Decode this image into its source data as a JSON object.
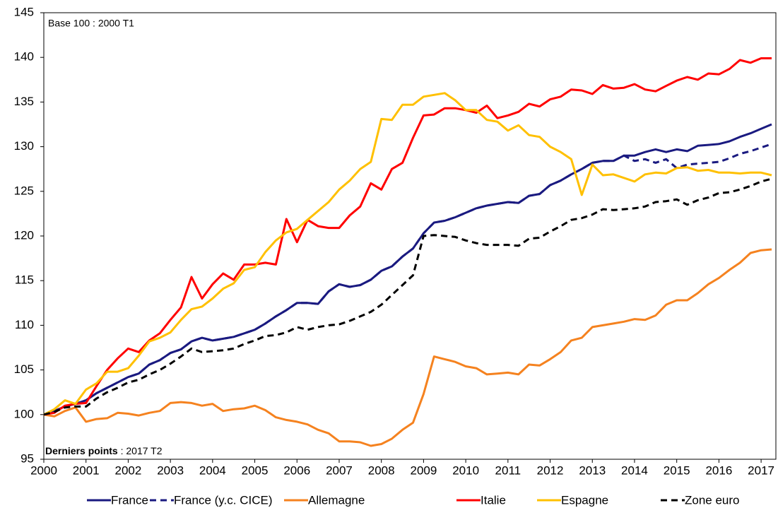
{
  "chart_data": {
    "type": "line",
    "annotation_top": "Base 100 : 2000 T1",
    "annotation_bottom_bold": "Derniers points",
    "annotation_bottom": " : 2017 T2",
    "xlim": [
      2000,
      2017.35
    ],
    "xticks": [
      2000,
      2001,
      2002,
      2003,
      2004,
      2005,
      2006,
      2007,
      2008,
      2009,
      2010,
      2011,
      2012,
      2013,
      2014,
      2015,
      2016,
      2017
    ],
    "ylim": [
      95,
      145
    ],
    "yticks": [
      95,
      100,
      105,
      110,
      115,
      120,
      125,
      130,
      135,
      140,
      145
    ],
    "x": [
      2000,
      2000.25,
      2000.5,
      2000.75,
      2001,
      2001.25,
      2001.5,
      2001.75,
      2002,
      2002.25,
      2002.5,
      2002.75,
      2003,
      2003.25,
      2003.5,
      2003.75,
      2004,
      2004.25,
      2004.5,
      2004.75,
      2005,
      2005.25,
      2005.5,
      2005.75,
      2006,
      2006.25,
      2006.5,
      2006.75,
      2007,
      2007.25,
      2007.5,
      2007.75,
      2008,
      2008.25,
      2008.5,
      2008.75,
      2009,
      2009.25,
      2009.5,
      2009.75,
      2010,
      2010.25,
      2010.5,
      2010.75,
      2011,
      2011.25,
      2011.5,
      2011.75,
      2012,
      2012.25,
      2012.5,
      2012.75,
      2013,
      2013.25,
      2013.5,
      2013.75,
      2014,
      2014.25,
      2014.5,
      2014.75,
      2015,
      2015.25,
      2015.5,
      2015.75,
      2016,
      2016.25,
      2016.5,
      2016.75,
      2017,
      2017.25
    ],
    "series": [
      {
        "name": "France",
        "color": "#1a1a80",
        "dashed": false,
        "values": [
          100,
          100.4,
          100.9,
          101.2,
          101.6,
          102.4,
          103.0,
          103.6,
          104.2,
          104.6,
          105.6,
          106.1,
          106.9,
          107.3,
          108.2,
          108.6,
          108.3,
          108.5,
          108.7,
          109.1,
          109.5,
          110.2,
          111.0,
          111.7,
          112.5,
          112.5,
          112.4,
          113.8,
          114.6,
          114.3,
          114.5,
          115.1,
          116.1,
          116.6,
          117.7,
          118.6,
          120.3,
          121.5,
          121.7,
          122.1,
          122.6,
          123.1,
          123.4,
          123.6,
          123.8,
          123.7,
          124.5,
          124.7,
          125.7,
          126.2,
          126.9,
          127.5,
          128.2,
          128.4,
          128.4,
          129.0,
          129.0,
          129.4,
          129.7,
          129.4,
          129.7,
          129.5,
          130.1,
          130.2,
          130.3,
          130.6,
          131.1,
          131.5,
          132.0,
          132.5
        ]
      },
      {
        "name": "France (y.c. CICE)",
        "color": "#1a1a80",
        "dashed": true,
        "values": [
          100,
          100.4,
          100.9,
          101.2,
          101.6,
          102.4,
          103.0,
          103.6,
          104.2,
          104.6,
          105.6,
          106.1,
          106.9,
          107.3,
          108.2,
          108.6,
          108.3,
          108.5,
          108.7,
          109.1,
          109.5,
          110.2,
          111.0,
          111.7,
          112.5,
          112.5,
          112.4,
          113.8,
          114.6,
          114.3,
          114.5,
          115.1,
          116.1,
          116.6,
          117.7,
          118.6,
          120.3,
          121.5,
          121.7,
          122.1,
          122.6,
          123.1,
          123.4,
          123.6,
          123.8,
          123.7,
          124.5,
          124.7,
          125.7,
          126.2,
          126.9,
          127.5,
          128.2,
          128.4,
          128.4,
          129.0,
          128.4,
          128.6,
          128.2,
          128.6,
          127.6,
          128.0,
          128.1,
          128.2,
          128.3,
          128.7,
          129.2,
          129.5,
          129.9,
          130.3
        ]
      },
      {
        "name": "Allemagne",
        "color": "#f5821f",
        "dashed": false,
        "values": [
          100,
          99.8,
          100.4,
          100.8,
          99.2,
          99.5,
          99.6,
          100.2,
          100.1,
          99.9,
          100.2,
          100.4,
          101.3,
          101.4,
          101.3,
          101.0,
          101.2,
          100.4,
          100.6,
          100.7,
          101.0,
          100.5,
          99.7,
          99.4,
          99.2,
          98.9,
          98.3,
          97.9,
          97.0,
          97.0,
          96.9,
          96.5,
          96.7,
          97.3,
          98.3,
          99.1,
          102.3,
          106.5,
          106.2,
          105.9,
          105.4,
          105.2,
          104.5,
          104.6,
          104.7,
          104.5,
          105.6,
          105.5,
          106.2,
          107.0,
          108.3,
          108.6,
          109.8,
          110.0,
          110.2,
          110.4,
          110.7,
          110.6,
          111.1,
          112.3,
          112.8,
          112.8,
          113.6,
          114.6,
          115.3,
          116.2,
          117.0,
          118.1,
          118.4,
          118.5
        ]
      },
      {
        "name": "Italie",
        "color": "#ff0000",
        "dashed": false,
        "values": [
          100,
          100.2,
          101.0,
          101.2,
          101.3,
          103.2,
          105.0,
          106.3,
          107.4,
          107.0,
          108.3,
          109.1,
          110.6,
          112.0,
          115.4,
          113.0,
          114.6,
          115.8,
          115.1,
          116.8,
          116.8,
          117.0,
          116.8,
          121.9,
          119.3,
          121.8,
          121.1,
          120.9,
          120.9,
          122.3,
          123.3,
          125.9,
          125.2,
          127.5,
          128.2,
          131.0,
          133.5,
          133.6,
          134.3,
          134.3,
          134.1,
          133.8,
          134.6,
          133.2,
          133.5,
          133.9,
          134.8,
          134.5,
          135.3,
          135.6,
          136.4,
          136.3,
          135.9,
          136.9,
          136.5,
          136.6,
          137.0,
          136.4,
          136.2,
          136.8,
          137.4,
          137.8,
          137.5,
          138.2,
          138.1,
          138.7,
          139.7,
          139.4,
          139.9,
          139.9
        ]
      },
      {
        "name": "Espagne",
        "color": "#ffc000",
        "dashed": false,
        "values": [
          100,
          100.6,
          101.6,
          101.2,
          102.8,
          103.5,
          104.8,
          104.8,
          105.2,
          106.6,
          108.2,
          108.6,
          109.2,
          110.6,
          111.8,
          112.1,
          113.0,
          114.1,
          114.7,
          116.2,
          116.5,
          118.2,
          119.5,
          120.4,
          120.8,
          121.8,
          122.8,
          123.8,
          125.2,
          126.2,
          127.5,
          128.3,
          133.1,
          133.0,
          134.7,
          134.7,
          135.6,
          135.8,
          136.0,
          135.2,
          134.1,
          134.1,
          133.0,
          132.8,
          131.8,
          132.4,
          131.3,
          131.1,
          130.0,
          129.4,
          128.6,
          124.6,
          128.0,
          126.8,
          126.9,
          126.5,
          126.1,
          126.9,
          127.1,
          127.0,
          127.6,
          127.7,
          127.3,
          127.4,
          127.1,
          127.1,
          127.0,
          127.1,
          127.1,
          126.8
        ]
      },
      {
        "name": "Zone euro",
        "color": "#000000",
        "dashed": true,
        "values": [
          100,
          100.3,
          100.8,
          100.9,
          100.9,
          101.8,
          102.5,
          103.0,
          103.6,
          103.9,
          104.5,
          105.0,
          105.7,
          106.5,
          107.4,
          107.0,
          107.1,
          107.2,
          107.4,
          107.9,
          108.3,
          108.8,
          108.9,
          109.2,
          109.8,
          109.5,
          109.8,
          110.0,
          110.1,
          110.5,
          111.0,
          111.5,
          112.3,
          113.4,
          114.5,
          115.6,
          120.0,
          120.1,
          120.0,
          119.9,
          119.5,
          119.2,
          119.0,
          119.0,
          119.0,
          118.9,
          119.7,
          119.8,
          120.5,
          121.1,
          121.8,
          122.0,
          122.4,
          123.0,
          122.9,
          123.0,
          123.1,
          123.3,
          123.8,
          123.9,
          124.1,
          123.5,
          124.0,
          124.3,
          124.8,
          124.9,
          125.2,
          125.6,
          126.1,
          126.4
        ]
      }
    ]
  }
}
